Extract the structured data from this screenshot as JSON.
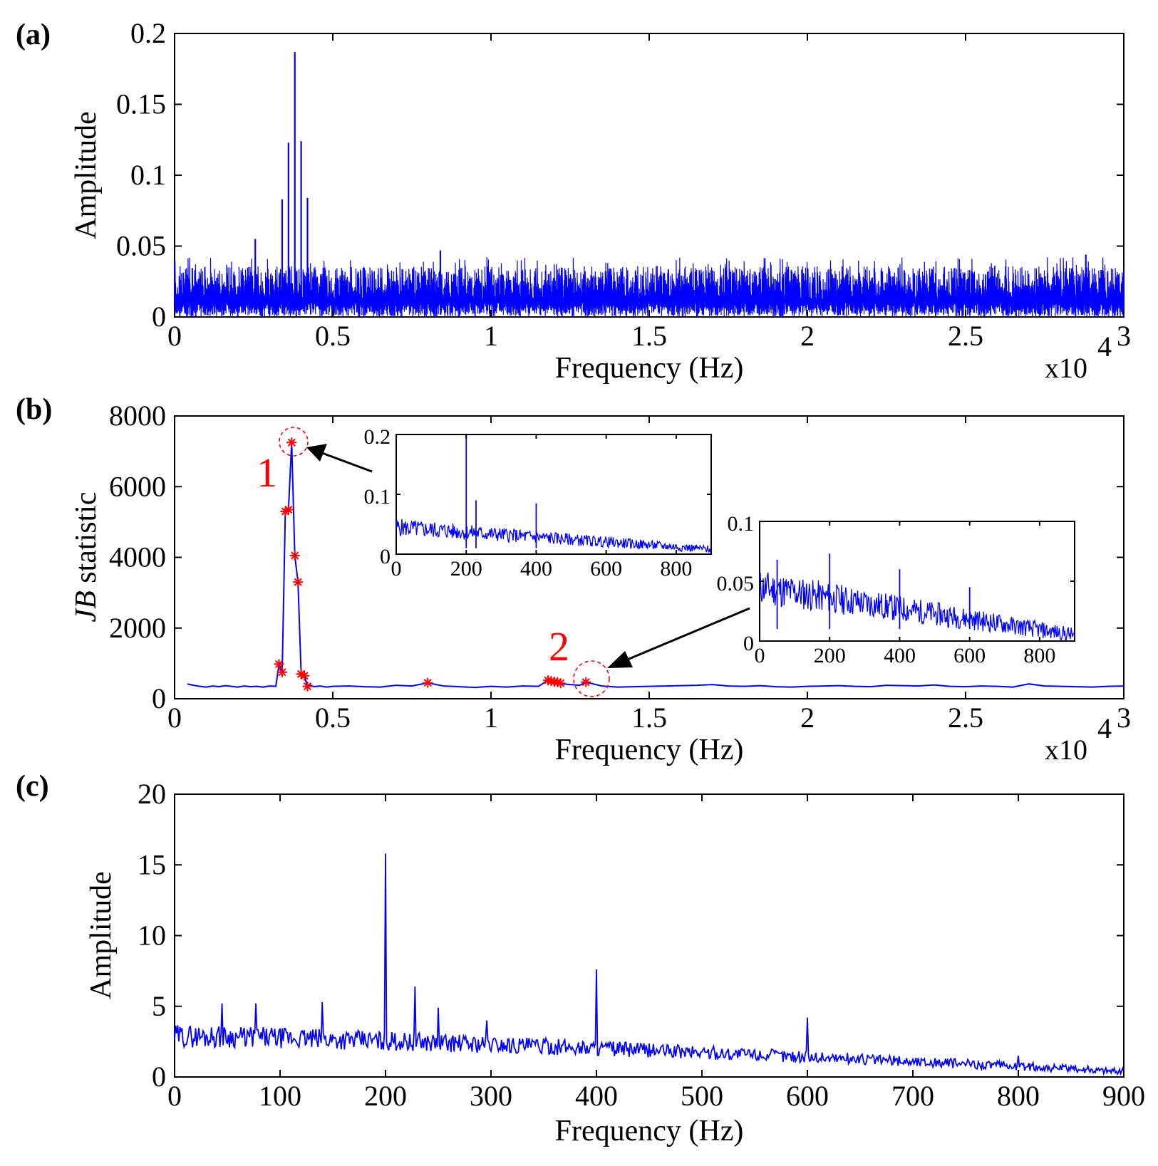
{
  "colors": {
    "series": "#0000ff",
    "highlight": "#ff0000",
    "axis": "#000000"
  },
  "chart_data": [
    {
      "panel": "(a)",
      "type": "line",
      "title": "",
      "xlabel": "Frequency (Hz)",
      "ylabel": "Amplitude",
      "x_scale_label": "x10",
      "x_scale_exp": "4",
      "xlim": [
        0,
        3
      ],
      "ylim": [
        0,
        0.2
      ],
      "xticks": [
        0,
        0.5,
        1,
        1.5,
        2,
        2.5,
        3
      ],
      "xtick_labels": [
        "0",
        "0.5",
        "1",
        "1.5",
        "2",
        "2.5",
        "3"
      ],
      "yticks": [
        0,
        0.05,
        0.1,
        0.15,
        0.2
      ],
      "ytick_labels": [
        "0",
        "0.05",
        "0.1",
        "0.15",
        "0.2"
      ],
      "noise_floor": [
        0.0,
        0.04
      ],
      "peaks": [
        {
          "x": 0.255,
          "y": 0.055
        },
        {
          "x": 0.34,
          "y": 0.083
        },
        {
          "x": 0.36,
          "y": 0.123
        },
        {
          "x": 0.38,
          "y": 0.187
        },
        {
          "x": 0.4,
          "y": 0.124
        },
        {
          "x": 0.42,
          "y": 0.084
        },
        {
          "x": 0.84,
          "y": 0.047
        },
        {
          "x": 2.88,
          "y": 0.044
        }
      ]
    },
    {
      "panel": "(b)",
      "type": "line",
      "title": "",
      "xlabel": "Frequency (Hz)",
      "ylabel_italic": "JB",
      "ylabel_rest": " statistic",
      "x_scale_label": "x10",
      "x_scale_exp": "4",
      "xlim": [
        0,
        3
      ],
      "ylim": [
        0,
        8000
      ],
      "xticks": [
        0,
        0.5,
        1,
        1.5,
        2,
        2.5,
        3
      ],
      "xtick_labels": [
        "0",
        "0.5",
        "1",
        "1.5",
        "2",
        "2.5",
        "3"
      ],
      "yticks": [
        0,
        2000,
        4000,
        6000,
        8000
      ],
      "ytick_labels": [
        "0",
        "2000",
        "4000",
        "6000",
        "8000"
      ],
      "series": [
        {
          "name": "JB statistic",
          "x": [
            0.04,
            0.06,
            0.08,
            0.1,
            0.12,
            0.14,
            0.16,
            0.18,
            0.2,
            0.22,
            0.24,
            0.26,
            0.28,
            0.3,
            0.32,
            0.33,
            0.34,
            0.35,
            0.36,
            0.37,
            0.38,
            0.39,
            0.4,
            0.41,
            0.42,
            0.43,
            0.44,
            0.46,
            0.48,
            0.5,
            0.55,
            0.6,
            0.65,
            0.7,
            0.75,
            0.8,
            0.85,
            0.9,
            0.95,
            1.0,
            1.05,
            1.1,
            1.15,
            1.18,
            1.19,
            1.2,
            1.21,
            1.22,
            1.23,
            1.25,
            1.28,
            1.3,
            1.35,
            1.4,
            1.45,
            1.5,
            1.55,
            1.6,
            1.65,
            1.7,
            1.75,
            1.8,
            1.85,
            1.9,
            1.95,
            2.0,
            2.05,
            2.1,
            2.15,
            2.2,
            2.25,
            2.3,
            2.35,
            2.4,
            2.45,
            2.5,
            2.55,
            2.6,
            2.65,
            2.7,
            2.75,
            2.8,
            2.85,
            2.9,
            2.95,
            3.0
          ],
          "values": [
            420,
            380,
            350,
            330,
            360,
            340,
            370,
            350,
            330,
            360,
            340,
            350,
            330,
            360,
            350,
            980,
            750,
            5300,
            5350,
            7250,
            4050,
            3300,
            700,
            650,
            350,
            380,
            340,
            360,
            330,
            350,
            360,
            340,
            330,
            380,
            360,
            450,
            360,
            340,
            320,
            350,
            330,
            360,
            350,
            520,
            500,
            480,
            470,
            440,
            420,
            400,
            380,
            470,
            360,
            330,
            340,
            350,
            360,
            370,
            380,
            400,
            360,
            350,
            370,
            340,
            330,
            350,
            360,
            370,
            350,
            340,
            380,
            370,
            360,
            390,
            350,
            340,
            360,
            350,
            330,
            420,
            360,
            350,
            340,
            330,
            350,
            360
          ]
        }
      ],
      "markers": [
        {
          "x": 0.33,
          "y": 980
        },
        {
          "x": 0.34,
          "y": 750
        },
        {
          "x": 0.35,
          "y": 5300
        },
        {
          "x": 0.36,
          "y": 5350
        },
        {
          "x": 0.37,
          "y": 7250
        },
        {
          "x": 0.38,
          "y": 4050
        },
        {
          "x": 0.39,
          "y": 3300
        },
        {
          "x": 0.4,
          "y": 700
        },
        {
          "x": 0.41,
          "y": 650
        },
        {
          "x": 0.42,
          "y": 350
        },
        {
          "x": 0.8,
          "y": 450
        },
        {
          "x": 1.18,
          "y": 520
        },
        {
          "x": 1.19,
          "y": 500
        },
        {
          "x": 1.2,
          "y": 480
        },
        {
          "x": 1.21,
          "y": 470
        },
        {
          "x": 1.22,
          "y": 440
        },
        {
          "x": 1.3,
          "y": 470
        }
      ],
      "annotations": [
        {
          "label": "1",
          "x": 0.37,
          "y": 7250
        },
        {
          "label": "2",
          "x": 1.3,
          "y": 470
        }
      ],
      "insets": [
        {
          "name": "inset-1",
          "xlim": [
            0,
            900
          ],
          "ylim": [
            0,
            0.2
          ],
          "xticks": [
            0,
            200,
            400,
            600,
            800
          ],
          "xtick_labels": [
            "0",
            "200",
            "400",
            "600",
            "800"
          ],
          "yticks": [
            0,
            0.1,
            0.2
          ],
          "ytick_labels": [
            "0",
            "0.1",
            "0.2"
          ],
          "base_start": 0.045,
          "base_end": 0.008,
          "noise": 0.03,
          "peaks": [
            {
              "x": 200,
              "y": 0.2
            },
            {
              "x": 228,
              "y": 0.09
            },
            {
              "x": 400,
              "y": 0.085
            }
          ]
        },
        {
          "name": "inset-2",
          "xlim": [
            0,
            900
          ],
          "ylim": [
            0,
            0.1
          ],
          "xticks": [
            0,
            200,
            400,
            600,
            800
          ],
          "xtick_labels": [
            "0",
            "200",
            "400",
            "600",
            "800"
          ],
          "yticks": [
            0,
            0.05,
            0.1
          ],
          "ytick_labels": [
            "0",
            "0.05",
            "0.1"
          ],
          "base_start": 0.045,
          "base_end": 0.005,
          "noise": 0.03,
          "peaks": [
            {
              "x": 50,
              "y": 0.068
            },
            {
              "x": 200,
              "y": 0.073
            },
            {
              "x": 400,
              "y": 0.06
            },
            {
              "x": 600,
              "y": 0.045
            }
          ]
        }
      ]
    },
    {
      "panel": "(c)",
      "type": "line",
      "title": "",
      "xlabel": "Frequency (Hz)",
      "ylabel": "Amplitude",
      "xlim": [
        0,
        900
      ],
      "ylim": [
        0,
        20
      ],
      "xticks": [
        0,
        100,
        200,
        300,
        400,
        500,
        600,
        700,
        800,
        900
      ],
      "xtick_labels": [
        "0",
        "100",
        "200",
        "300",
        "400",
        "500",
        "600",
        "700",
        "800",
        "900"
      ],
      "yticks": [
        0,
        5,
        10,
        15,
        20
      ],
      "ytick_labels": [
        "0",
        "5",
        "10",
        "15",
        "20"
      ],
      "base_start": 2.9,
      "base_end": 0.4,
      "noise": 1.6,
      "peaks": [
        {
          "x": 45,
          "y": 5.2
        },
        {
          "x": 77,
          "y": 5.2
        },
        {
          "x": 140,
          "y": 5.3
        },
        {
          "x": 200,
          "y": 15.8
        },
        {
          "x": 228,
          "y": 6.4
        },
        {
          "x": 250,
          "y": 4.9
        },
        {
          "x": 296,
          "y": 4.0
        },
        {
          "x": 400,
          "y": 7.6
        },
        {
          "x": 600,
          "y": 4.2
        },
        {
          "x": 800,
          "y": 1.5
        }
      ]
    }
  ]
}
